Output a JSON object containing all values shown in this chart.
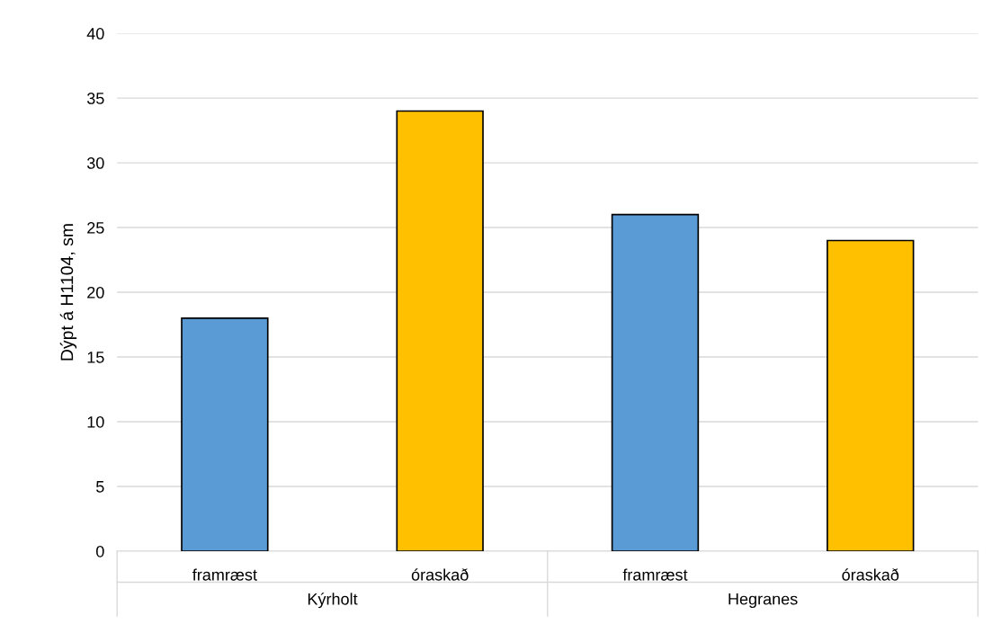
{
  "chart_data": {
    "type": "bar",
    "categories": [
      "framræst",
      "óraskað",
      "framræst",
      "óraskað"
    ],
    "values": [
      18,
      34,
      26,
      24
    ],
    "colors": [
      "#5b9bd5",
      "#ffc000",
      "#5b9bd5",
      "#ffc000"
    ],
    "ylabel": "Dýpt á H1104, sm",
    "ylim": [
      0,
      40
    ],
    "yticks": [
      0,
      5,
      10,
      15,
      20,
      25,
      30,
      35,
      40
    ],
    "grid": "y",
    "legend": false,
    "annotations": [
      "Kýrholt",
      "Hegranes"
    ]
  }
}
